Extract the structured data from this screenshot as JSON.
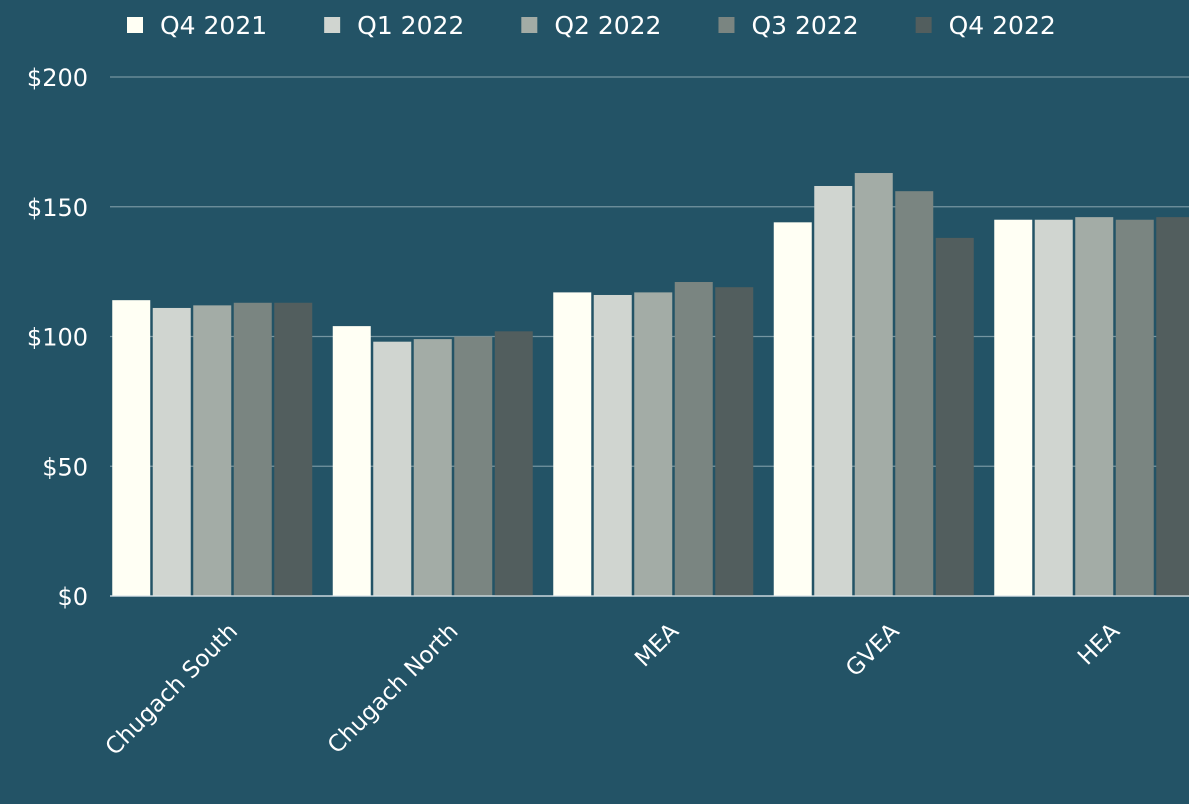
{
  "chart_data": {
    "type": "bar",
    "categories": [
      "Chugach South",
      "Chugach North",
      "MEA",
      "GVEA",
      "HEA"
    ],
    "series": [
      {
        "name": "Q4 2021",
        "color": "#fffff4",
        "values": [
          114,
          104,
          117,
          144,
          145
        ]
      },
      {
        "name": "Q1 2022",
        "color": "#d0d5d0",
        "values": [
          111,
          98,
          116,
          158,
          145
        ]
      },
      {
        "name": "Q2 2022",
        "color": "#a3aca6",
        "values": [
          112,
          99,
          117,
          163,
          146
        ]
      },
      {
        "name": "Q3 2022",
        "color": "#7a8581",
        "values": [
          113,
          100,
          121,
          156,
          145
        ]
      },
      {
        "name": "Q4 2022",
        "color": "#525e5e",
        "values": [
          113,
          102,
          119,
          138,
          146
        ]
      }
    ],
    "ylim": [
      0,
      200
    ],
    "yticks": [
      {
        "value": 0,
        "label": "$0"
      },
      {
        "value": 50,
        "label": "$50"
      },
      {
        "value": 100,
        "label": "$100"
      },
      {
        "value": 150,
        "label": "$150"
      },
      {
        "value": 200,
        "label": "$200"
      }
    ],
    "grid": true,
    "legend": "top"
  }
}
